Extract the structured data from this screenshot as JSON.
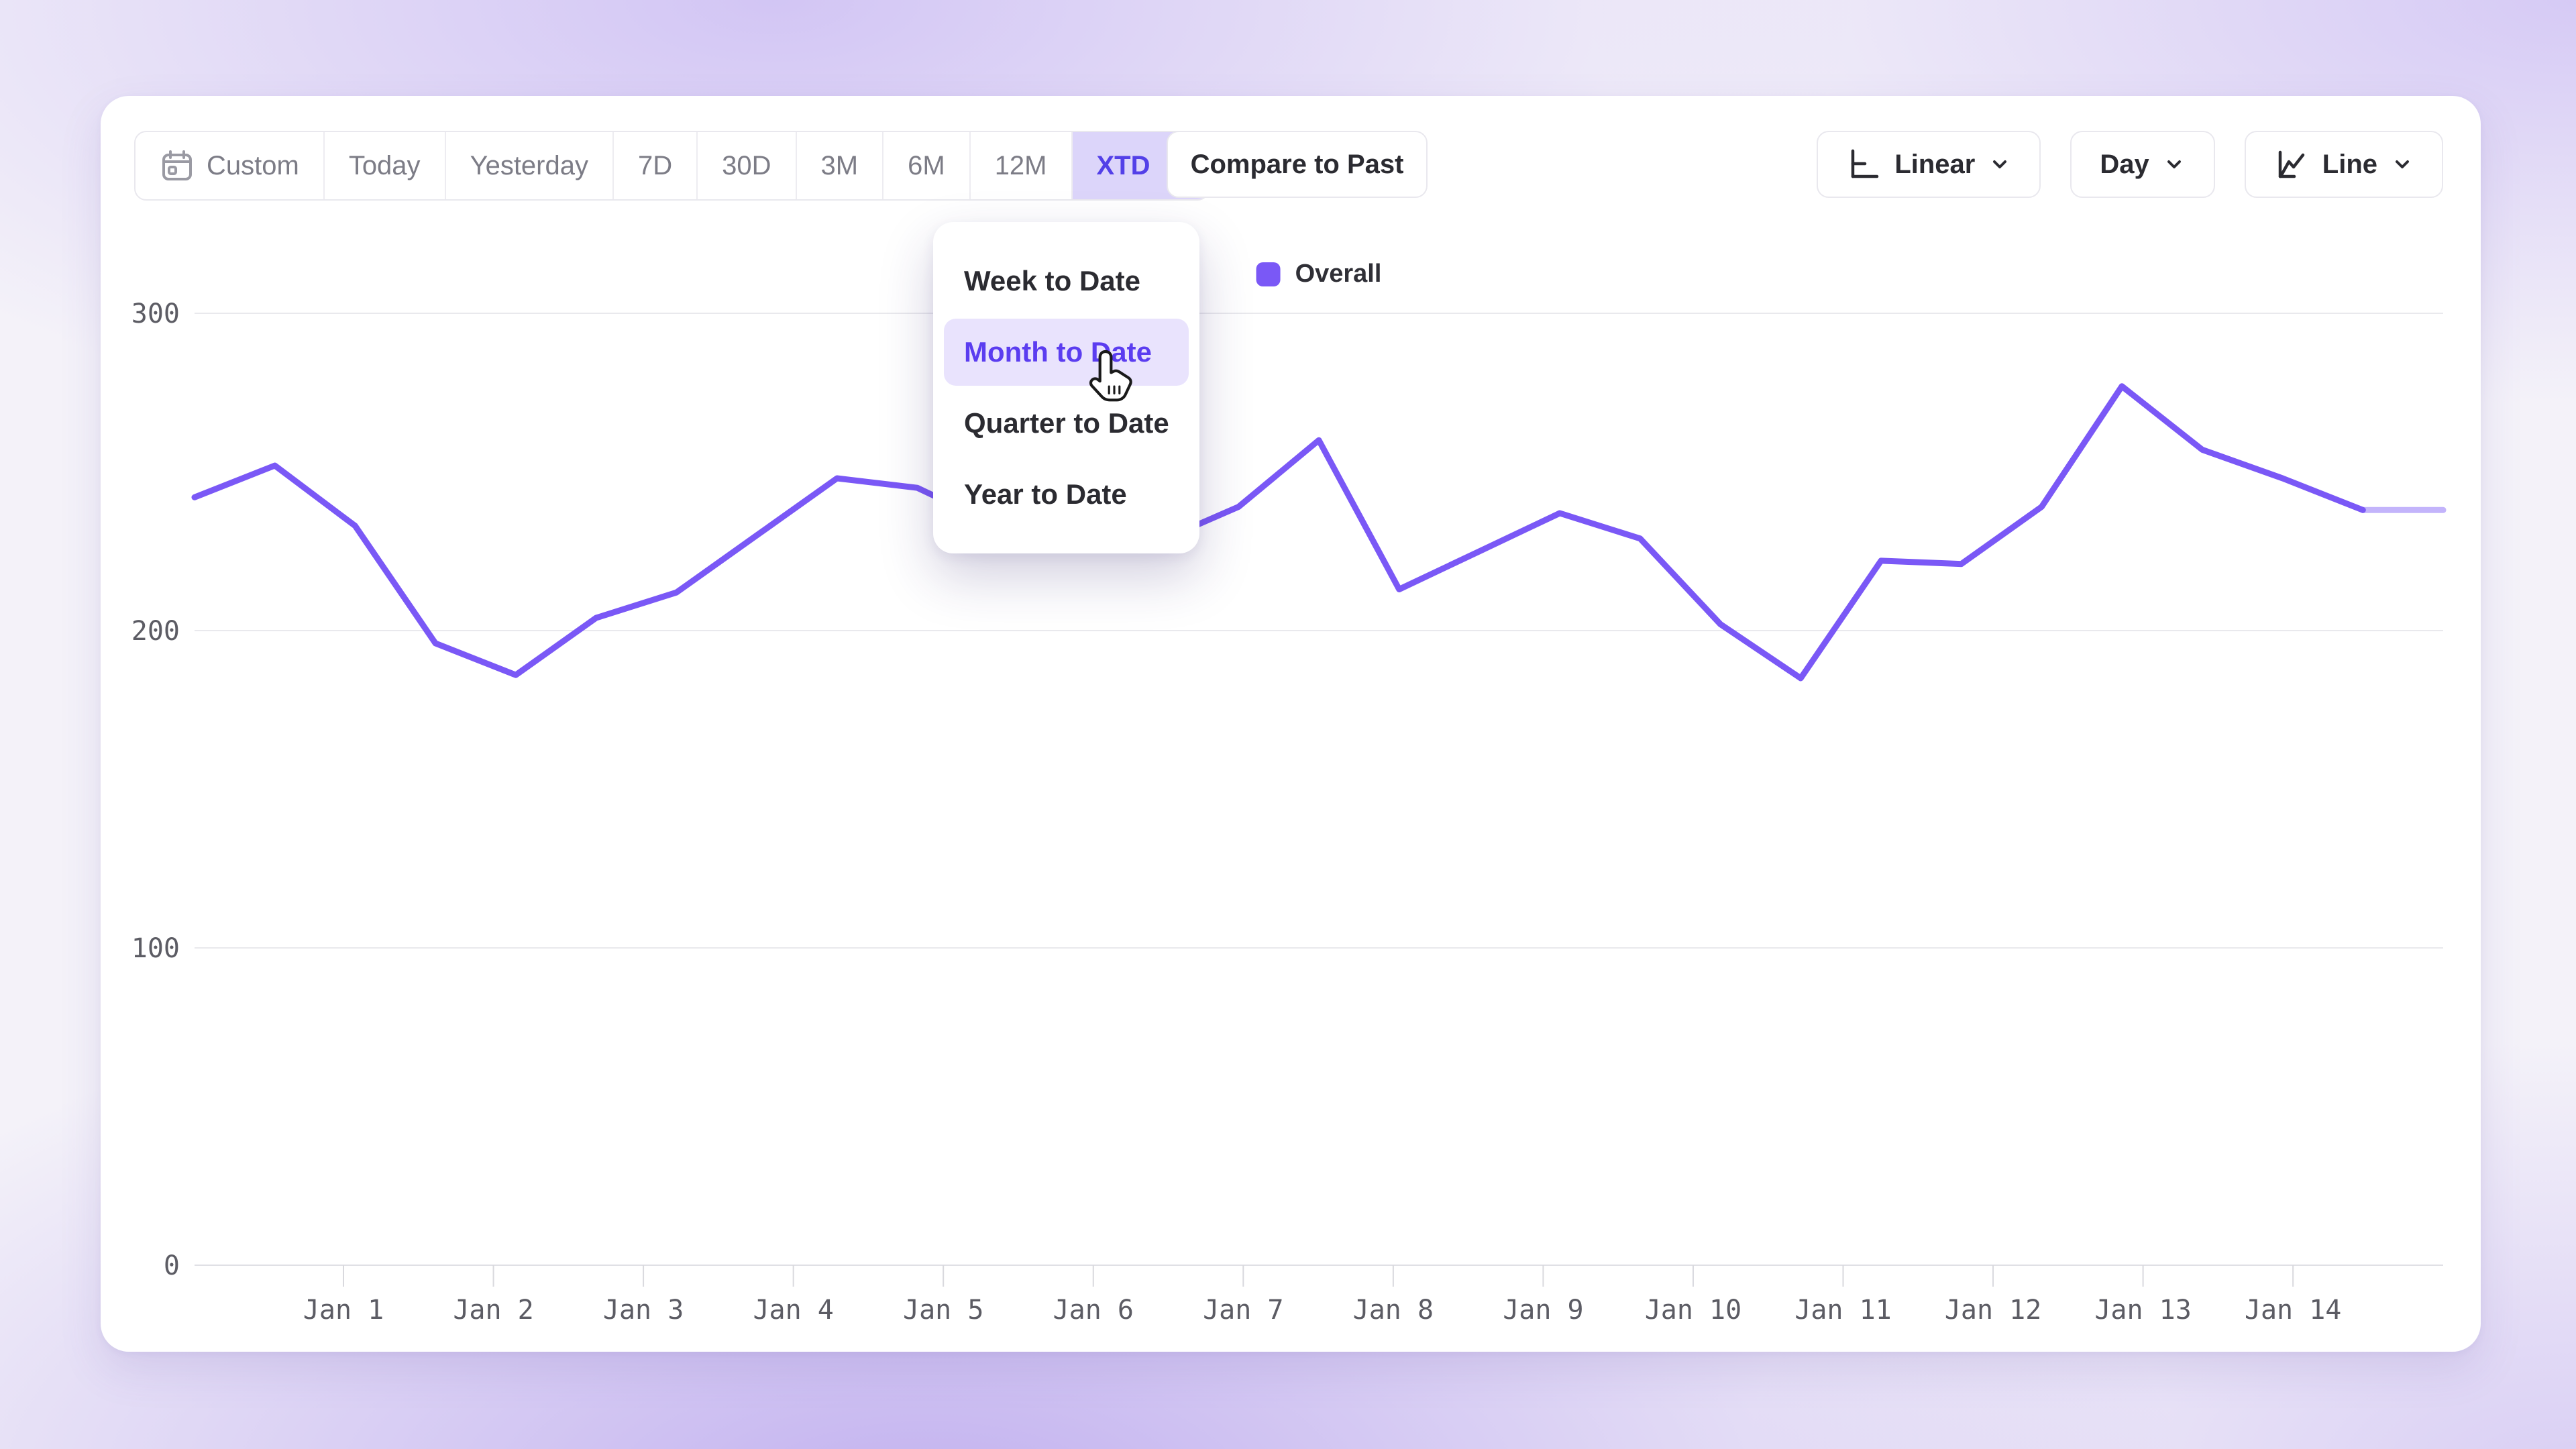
{
  "toolbar": {
    "time_ranges": [
      {
        "label": "Custom",
        "icon": "calendar-icon",
        "active": false
      },
      {
        "label": "Today",
        "active": false
      },
      {
        "label": "Yesterday",
        "active": false
      },
      {
        "label": "7D",
        "active": false
      },
      {
        "label": "30D",
        "active": false
      },
      {
        "label": "3M",
        "active": false
      },
      {
        "label": "6M",
        "active": false
      },
      {
        "label": "12M",
        "active": false
      },
      {
        "label": "XTD",
        "active": true,
        "has_chevron": true
      }
    ],
    "compare_button": "Compare to Past",
    "scale_select": "Linear",
    "granularity_select": "Day",
    "chart_type_select": "Line"
  },
  "dropdown_menu": {
    "items": [
      {
        "label": "Week to Date",
        "selected": false
      },
      {
        "label": "Month to Date",
        "selected": true
      },
      {
        "label": "Quarter to Date",
        "selected": false
      },
      {
        "label": "Year to Date",
        "selected": false
      }
    ]
  },
  "legend": {
    "label": "Overall"
  },
  "chart_data": {
    "type": "line",
    "title": "",
    "xlabel": "",
    "ylabel": "",
    "y_ticks": [
      0,
      100,
      200,
      300
    ],
    "ylim": [
      0,
      330
    ],
    "grid": "horizontal",
    "legend_position": "top-center",
    "x_tick_labels": [
      "Jan 1",
      "Jan 2",
      "Jan 3",
      "Jan 4",
      "Jan 5",
      "Jan 6",
      "Jan 7",
      "Jan 8",
      "Jan 9",
      "Jan 10",
      "Jan 11",
      "Jan 12",
      "Jan 13",
      "Jan 14"
    ],
    "x_description": "29 evenly spaced points (~2 per day) spanning the full plot width; day ticks Jan 1-14 sit between points",
    "series": [
      {
        "name": "Overall",
        "color": "#7a58f6",
        "final_segment_lighter": true,
        "values": [
          242,
          252,
          233,
          196,
          186,
          204,
          212,
          230,
          248,
          245,
          233,
          237,
          228,
          239,
          260,
          213,
          225,
          237,
          229,
          202,
          185,
          222,
          221,
          239,
          277,
          257,
          248,
          238,
          238
        ]
      }
    ]
  },
  "colors": {
    "accent_text": "#5340e8",
    "accent_bg": "#dcd5fa",
    "menu_active_bg": "#e9e3fd",
    "menu_active_text": "#5b3df0",
    "line": "#7a58f6",
    "muted_text": "#7c7c86",
    "dark_text": "#2b2b31",
    "axis_text": "#5c5c64",
    "gridline": "#e9e9ed",
    "baseline": "#e0e0e5",
    "tick": "#d9d9de",
    "border": "#e9e8ee"
  }
}
